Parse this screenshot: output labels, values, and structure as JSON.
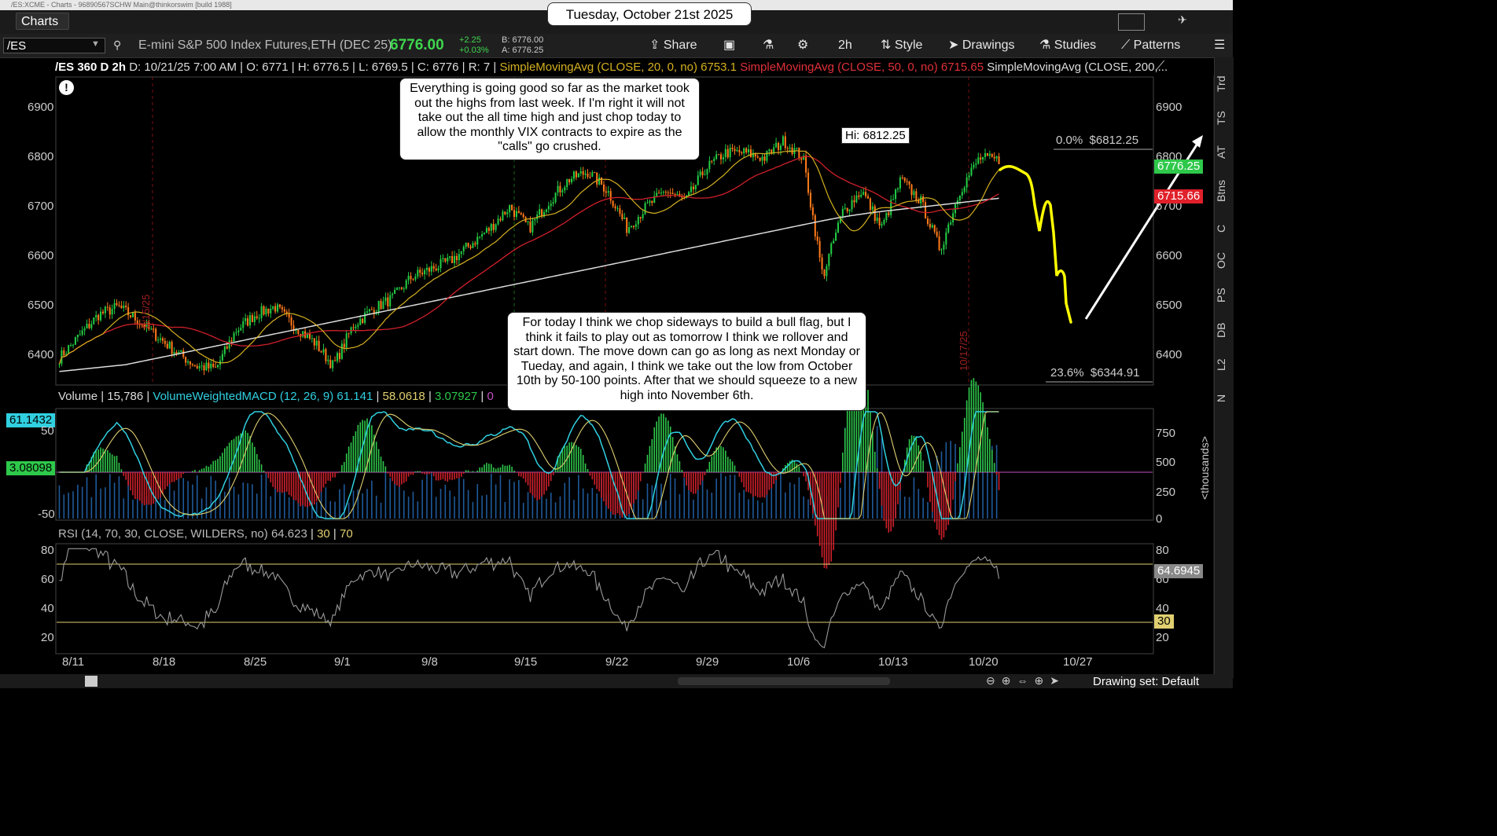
{
  "window": {
    "title": "/ES:XCME - Charts - 96890567SCHW Main@thinkorswim [build 1988]"
  },
  "tab": {
    "label": "Charts"
  },
  "date_label": "Tuesday, October 21st 2025",
  "toolbar": {
    "symbol": "/ES",
    "description": "E-mini S&P 500 Index Futures,ETH (DEC 25)",
    "last": "6776.00",
    "change": "+2.25",
    "change_pct": "+0.03%",
    "bid": "B: 6776.00",
    "ask": "A: 6776.25",
    "share": "Share",
    "timeframe": "2h",
    "style": "Style",
    "drawings": "Drawings",
    "studies": "Studies",
    "patterns": "Patterns"
  },
  "studybar": {
    "title": "/ES 360 D 2h",
    "d": "D: 10/21/25 7:00 AM",
    "o": "O: 6771",
    "h": "H: 6776.5",
    "l": "L: 6769.5",
    "c": "C: 6776",
    "r": "R: 7",
    "sma20": "SimpleMovingAvg (CLOSE, 20, 0, no)",
    "sma20_val": "6753.1",
    "sma50": "SimpleMovingAvg (CLOSE, 50, 0, no)",
    "sma50_val": "6715.65",
    "sma200": "SimpleMovingAvg (CLOSE, 200,..."
  },
  "annotations": {
    "top": "Everything is going good so far as the market took out the highs from last week.  If I'm right it will not take out the all time high and just chop today to allow the monthly VIX contracts to expire as the \"calls\" go crushed.",
    "bottom": "For today I think we chop sideways to build a bull flag, but I think it fails to play out as tomorrow I think we rollover and start down.  The move down can go as long as next Monday or Tueday, and again, I think we take out the low from October 10th by 50-100 points.  After that we should squeeze to a new high into November 6th.",
    "hi": "Hi: 6812.25",
    "fib0": "0.0%  $6812.25",
    "fib236": "23.6%  $6344.91",
    "date_815": "8/15/25",
    "date_1017": "10/17/25"
  },
  "price_axis": {
    "ticks": [
      "6900",
      "6800",
      "6700",
      "6600",
      "6500",
      "6400"
    ],
    "last_badge": "6776.25",
    "sma_badge": "6715.66"
  },
  "volume_panel": {
    "label": "Volume",
    "value": "15,786",
    "macd": "VolumeWeightedMACD (12, 26, 9)",
    "macd_val": "61.141",
    "signal_val": "58.0618",
    "diff_val": "3.07927",
    "zero": "0",
    "left_badge1": "61.1432",
    "left_badge2": "3.08098",
    "left_ticks": [
      "50",
      "-50"
    ],
    "right_ticks": [
      "750",
      "500",
      "250",
      "0"
    ],
    "unit": "<thousands>"
  },
  "rsi_panel": {
    "label": "RSI (14, 70, 30, CLOSE, WILDERS, no)",
    "val": "64.623",
    "low": "30",
    "high": "70",
    "ticks": [
      "80",
      "60",
      "40",
      "20"
    ],
    "badge": "64.6945",
    "badge30": "30"
  },
  "x_axis": {
    "ticks": [
      "8/11",
      "8/18",
      "8/25",
      "9/1",
      "9/8",
      "9/15",
      "9/22",
      "9/29",
      "10/6",
      "10/13",
      "10/20",
      "10/27"
    ]
  },
  "right_tabs": [
    "Trd",
    "TS",
    "AT",
    "Btns",
    "C",
    "OC",
    "PS",
    "DB",
    "L2",
    "N"
  ],
  "bottom": {
    "drawing_set": "Drawing set: Default"
  },
  "colors": {
    "up": "#22cc44",
    "down": "#ff7a1a",
    "sma20": "#d4b020",
    "sma50": "#d0202a",
    "sma200": "#dddddd",
    "projection": "#ffff00"
  },
  "chart_data": {
    "type": "candlestick",
    "y_range": [
      6360,
      6930
    ],
    "x_labels": [
      "8/11",
      "8/18",
      "8/25",
      "9/1",
      "9/8",
      "9/15",
      "9/22",
      "9/29",
      "10/6",
      "10/13",
      "10/20",
      "10/27"
    ],
    "close_path": [
      6410,
      6450,
      6490,
      6505,
      6480,
      6450,
      6420,
      6395,
      6390,
      6460,
      6490,
      6505,
      6470,
      6440,
      6395,
      6470,
      6500,
      6520,
      6560,
      6575,
      6590,
      6620,
      6650,
      6690,
      6650,
      6700,
      6740,
      6755,
      6720,
      6650,
      6690,
      6720,
      6700,
      6760,
      6790,
      6790,
      6780,
      6812,
      6780,
      6560,
      6680,
      6720,
      6650,
      6740,
      6700,
      6610,
      6720,
      6780,
      6776
    ]
  }
}
